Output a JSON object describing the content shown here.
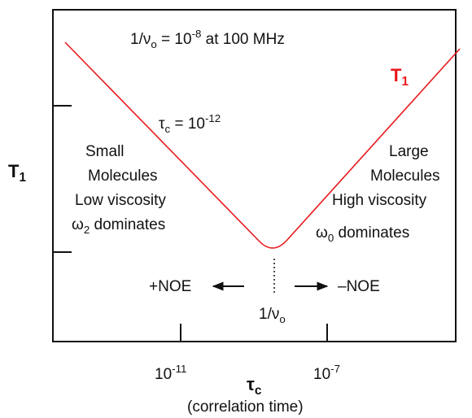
{
  "title": [
    {
      "t": "1/ν"
    },
    {
      "t": "o",
      "s": "sub"
    },
    {
      "t": " = 10"
    },
    {
      "t": "-8",
      "s": "sup"
    },
    {
      "t": " at 100 MHz"
    }
  ],
  "curve_label": [
    {
      "t": "T"
    },
    {
      "t": "1",
      "s": "sub"
    }
  ],
  "minimum_label": [
    {
      "t": "τ"
    },
    {
      "t": "c",
      "s": "sub"
    },
    {
      "t": " = 10"
    },
    {
      "t": "-12",
      "s": "sup"
    }
  ],
  "left_region": {
    "line1": [
      {
        "t": "Small"
      }
    ],
    "line2": [
      {
        "t": "Molecules"
      }
    ],
    "line3": [
      {
        "t": "Low viscosity"
      }
    ],
    "line4": [
      {
        "t": "ω"
      },
      {
        "t": "2",
        "s": "sub"
      },
      {
        "t": " dominates"
      }
    ]
  },
  "right_region": {
    "line1": [
      {
        "t": "Large"
      }
    ],
    "line2": [
      {
        "t": "Molecules"
      }
    ],
    "line3": [
      {
        "t": "High viscosity"
      }
    ],
    "line4": [
      {
        "t": "ω"
      },
      {
        "t": "0",
        "s": "sub"
      },
      {
        "t": " dominates"
      }
    ]
  },
  "y_axis_label": [
    {
      "t": "T"
    },
    {
      "t": "1",
      "s": "sub"
    }
  ],
  "positive_noe": [
    {
      "t": "+NOE"
    }
  ],
  "negative_noe": [
    {
      "t": "–NOE"
    }
  ],
  "crossover_label": [
    {
      "t": "1/ν"
    },
    {
      "t": "o",
      "s": "sub"
    }
  ],
  "x_tick_1": [
    {
      "t": "10"
    },
    {
      "t": "-11",
      "s": "sup"
    }
  ],
  "x_tick_2": [
    {
      "t": "10"
    },
    {
      "t": "-7",
      "s": "sup"
    }
  ],
  "x_axis_label": [
    {
      "t": "τ"
    },
    {
      "t": "c",
      "s": "sub"
    }
  ],
  "x_axis_note": [
    {
      "t": "(correlation time)"
    }
  ]
}
